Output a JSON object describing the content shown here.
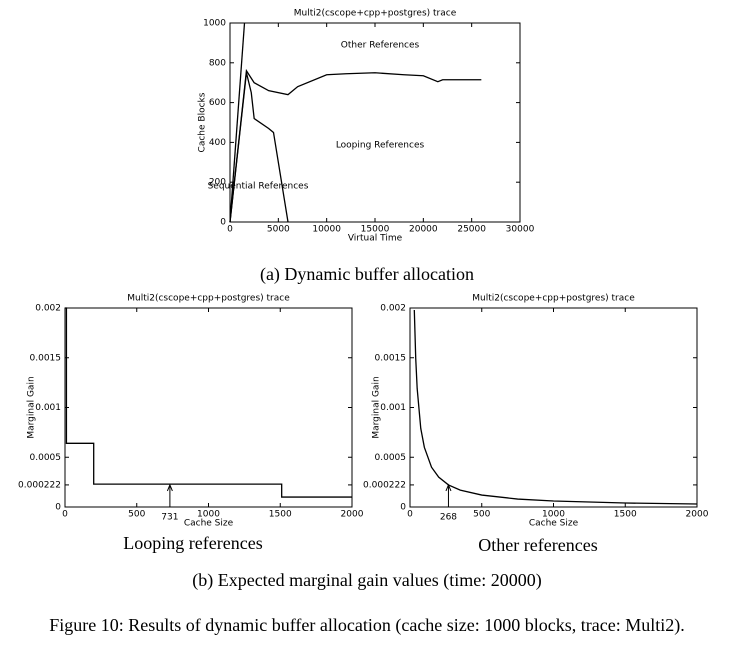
{
  "chart_data": [
    {
      "type": "line",
      "title": "Multi2(cscope+cpp+postgres) trace",
      "xlabel": "Virtual Time",
      "ylabel": "Cache Blocks",
      "xlim": [
        0,
        30000
      ],
      "xticks": [
        0,
        5000,
        10000,
        15000,
        20000,
        25000,
        30000
      ],
      "ylim": [
        0,
        1000
      ],
      "yticks": [
        0,
        200,
        400,
        600,
        800,
        1000
      ],
      "series": [
        {
          "name": "Sequential References",
          "color": "#000000",
          "x": [
            0,
            1500
          ],
          "values": [
            0,
            1000
          ]
        },
        {
          "name": "Looping References",
          "color": "#000000",
          "x": [
            0,
            1700,
            2200,
            2500,
            4000,
            4500,
            6000
          ],
          "values": [
            0,
            750,
            650,
            520,
            470,
            450,
            0
          ]
        },
        {
          "name": "Other References",
          "color": "#000000",
          "x": [
            0,
            1700,
            2500,
            4000,
            6000,
            7000,
            10000,
            12000,
            15000,
            18000,
            20000,
            21500,
            22000,
            26000
          ],
          "values": [
            0,
            760,
            700,
            660,
            640,
            680,
            740,
            745,
            750,
            740,
            735,
            705,
            715,
            715
          ]
        }
      ],
      "caption": "(a) Dynamic buffer allocation"
    },
    {
      "type": "line",
      "title": "Multi2(cscope+cpp+postgres) trace",
      "xlabel": "Cache Size",
      "ylabel": "Marginal Gain",
      "xlim": [
        0,
        2000
      ],
      "xticks": [
        0,
        500,
        1000,
        1500,
        2000
      ],
      "ylim": [
        0,
        0.002
      ],
      "yticks": [
        0,
        0.000222,
        0.0005,
        0.001,
        0.0015,
        0.002
      ],
      "series": [
        {
          "color": "#000000",
          "x": [
            0,
            10,
            10,
            200,
            200,
            1510,
            1510,
            2000
          ],
          "values": [
            0.002,
            0.002,
            0.00064,
            0.00064,
            0.00023,
            0.00023,
            0.0001,
            0.0001
          ]
        }
      ],
      "annotations": [
        {
          "x": 731,
          "y": 0.000222
        }
      ],
      "caption": "Looping references"
    },
    {
      "type": "line",
      "title": "Multi2(cscope+cpp+postgres) trace",
      "xlabel": "Cache Size",
      "ylabel": "Marginal Gain",
      "xlim": [
        0,
        2000
      ],
      "xticks": [
        0,
        500,
        1000,
        1500,
        2000
      ],
      "ylim": [
        0,
        0.002
      ],
      "yticks": [
        0,
        0.000222,
        0.0005,
        0.001,
        0.0015,
        0.002
      ],
      "series": [
        {
          "color": "#000000",
          "x": [
            30,
            40,
            50,
            75,
            100,
            150,
            200,
            268,
            350,
            500,
            750,
            1000,
            1500,
            2000
          ],
          "values": [
            0.00198,
            0.00149,
            0.00119,
            0.00079,
            0.0006,
            0.0004,
            0.0003,
            0.000222,
            0.00017,
            0.00012,
            8e-05,
            6e-05,
            4e-05,
            3e-05
          ]
        }
      ],
      "annotations": [
        {
          "x": 268,
          "y": 0.000222
        }
      ],
      "caption": "Other references"
    }
  ],
  "subfigure_caption": "(b) Expected marginal gain values (time: 20000)",
  "figure_caption": "Figure 10: Results of dynamic buffer allocation (cache size: 1000 blocks, trace: Multi2)."
}
